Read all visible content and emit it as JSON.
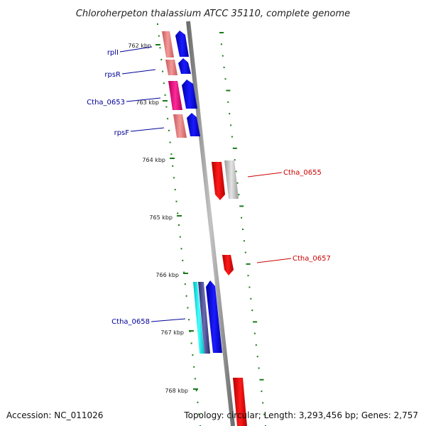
{
  "title": "Chloroherpeton thalassium ATCC 35110, complete genome",
  "ticks": [
    {
      "label": "762 kbp"
    },
    {
      "label": "763 kbp"
    },
    {
      "label": "764 kbp"
    },
    {
      "label": "765 kbp"
    },
    {
      "label": "766 kbp"
    },
    {
      "label": "767 kbp"
    },
    {
      "label": "768 kbp"
    }
  ],
  "genes": [
    {
      "id": "rplI",
      "label": "rplI",
      "strand": "forward",
      "color": "#000099"
    },
    {
      "id": "rpsR",
      "label": "rpsR",
      "strand": "forward",
      "color": "#000099"
    },
    {
      "id": "ctha0653",
      "label": "Ctha_0653",
      "strand": "forward",
      "color": "#000099"
    },
    {
      "id": "rpsF",
      "label": "rpsF",
      "strand": "forward",
      "color": "#000099"
    },
    {
      "id": "ctha0655",
      "label": "Ctha_0655",
      "strand": "reverse",
      "color": "#cc0000"
    },
    {
      "id": "ctha0657",
      "label": "Ctha_0657",
      "strand": "reverse",
      "color": "#cc0000"
    },
    {
      "id": "ctha0658",
      "label": "Ctha_0658",
      "strand": "forward",
      "color": "#000099"
    }
  ],
  "footer": {
    "accession": "Accession: NC_011026",
    "summary": "Topology: circular; Length: 3,293,456 bp; Genes: 2,757"
  },
  "colors": {
    "backbone": "#8a8a8a",
    "tick": "#1a7a1a",
    "forward_gene": "#0000ee",
    "reverse_gene": "#ee0000",
    "forward_label": "#000099",
    "reverse_label": "#cc0000"
  }
}
